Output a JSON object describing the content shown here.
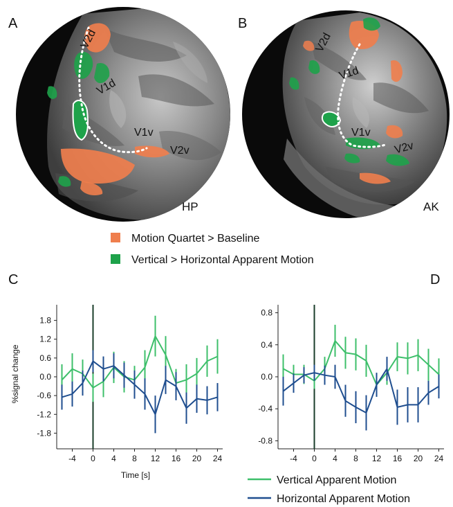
{
  "figure": {
    "panels": {
      "A": {
        "letter": "A",
        "subject": "HP",
        "areas": [
          "V2d",
          "V1d",
          "V1v",
          "V2v"
        ]
      },
      "B": {
        "letter": "B",
        "subject": "AK",
        "areas": [
          "V2d",
          "V1d",
          "V1v",
          "V2v"
        ]
      },
      "C": {
        "letter": "C"
      },
      "D": {
        "letter": "D"
      }
    },
    "brain_legend": [
      {
        "label": "Motion Quartet > Baseline",
        "color": "#ef7e4d"
      },
      {
        "label": "Vertical > Horizontal Apparent Motion",
        "color": "#1ea24a"
      }
    ],
    "line_legend": [
      {
        "label": "Vertical Apparent Motion",
        "color": "#3dbf6a"
      },
      {
        "label": "Horizontal Apparent Motion",
        "color": "#1f4e8f"
      }
    ]
  },
  "chart_data": [
    {
      "panel": "C",
      "type": "line",
      "xlabel": "Time [s]",
      "ylabel": "%signal change",
      "xlim": [
        -7,
        25
      ],
      "ylim": [
        -2.3,
        2.3
      ],
      "xticks": [
        -4,
        0,
        4,
        8,
        12,
        16,
        20,
        24
      ],
      "yticks": [
        -1.8,
        -1.2,
        -0.6,
        0.0,
        0.6,
        1.2,
        1.8
      ],
      "ytick_labels": [
        "-1.8",
        "-1.2",
        "-0.6",
        "0.0",
        "0.6",
        "1.2",
        "1.8"
      ],
      "x": [
        -6,
        -4,
        -2,
        0,
        2,
        4,
        6,
        8,
        10,
        12,
        14,
        16,
        18,
        20,
        22,
        24
      ],
      "series": [
        {
          "color": "#3dbf6a",
          "values": [
            -0.1,
            0.25,
            0.1,
            -0.35,
            -0.15,
            0.3,
            0.0,
            -0.1,
            0.3,
            1.3,
            0.7,
            -0.2,
            -0.1,
            0.1,
            0.5,
            0.65
          ],
          "errors": [
            0.5,
            0.5,
            0.45,
            0.45,
            0.5,
            0.5,
            0.5,
            0.45,
            0.55,
            0.65,
            0.6,
            0.45,
            0.5,
            0.5,
            0.5,
            0.55
          ]
        },
        {
          "color": "#1f4e8f",
          "values": [
            -0.65,
            -0.55,
            -0.2,
            0.5,
            0.25,
            0.35,
            0.05,
            -0.25,
            -0.55,
            -1.2,
            -0.1,
            -0.3,
            -1.0,
            -0.7,
            -0.75,
            -0.65
          ],
          "errors": [
            0.4,
            0.4,
            0.4,
            0.35,
            0.4,
            0.4,
            0.4,
            0.45,
            0.5,
            0.6,
            0.45,
            0.45,
            0.5,
            0.45,
            0.45,
            0.45
          ]
        }
      ]
    },
    {
      "panel": "D",
      "type": "line",
      "xlabel": "",
      "ylabel": "",
      "xlim": [
        -7,
        25
      ],
      "ylim": [
        -0.9,
        0.9
      ],
      "xticks": [
        -4,
        0,
        4,
        8,
        12,
        16,
        20,
        24
      ],
      "yticks": [
        -0.8,
        -0.4,
        0.0,
        0.4,
        0.8
      ],
      "ytick_labels": [
        "-0.8",
        "-0.4",
        "0.0",
        "0.4",
        "0.8"
      ],
      "x": [
        -6,
        -4,
        -2,
        0,
        2,
        4,
        6,
        8,
        10,
        12,
        14,
        16,
        18,
        20,
        22,
        24
      ],
      "series": [
        {
          "color": "#3dbf6a",
          "values": [
            0.1,
            0.03,
            0.03,
            -0.05,
            0.1,
            0.45,
            0.3,
            0.28,
            0.2,
            -0.1,
            0.05,
            0.25,
            0.23,
            0.27,
            0.15,
            0.03
          ],
          "errors": [
            0.18,
            0.12,
            0.12,
            0.1,
            0.15,
            0.2,
            0.2,
            0.2,
            0.2,
            0.15,
            0.15,
            0.18,
            0.2,
            0.2,
            0.2,
            0.2
          ]
        },
        {
          "color": "#1f4e8f",
          "values": [
            -0.18,
            -0.08,
            0.02,
            0.05,
            0.02,
            0.0,
            -0.3,
            -0.38,
            -0.45,
            -0.1,
            0.1,
            -0.38,
            -0.35,
            -0.35,
            -0.2,
            -0.12
          ],
          "errors": [
            0.18,
            0.12,
            0.1,
            0.1,
            0.12,
            0.15,
            0.2,
            0.2,
            0.22,
            0.15,
            0.15,
            0.22,
            0.22,
            0.22,
            0.15,
            0.15
          ]
        }
      ]
    }
  ]
}
